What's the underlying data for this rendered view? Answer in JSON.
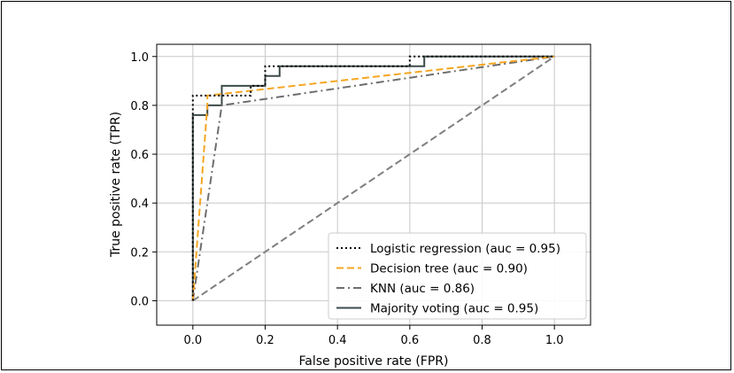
{
  "chart_data": {
    "type": "line",
    "title": "",
    "xlabel": "False positive rate (FPR)",
    "ylabel": "True positive rate (TPR)",
    "xlim": [
      -0.1,
      1.1
    ],
    "ylim": [
      -0.1,
      1.05
    ],
    "xticks": [
      0.0,
      0.2,
      0.4,
      0.6,
      0.8,
      1.0
    ],
    "xtick_labels": [
      "0.0",
      "0.2",
      "0.4",
      "0.6",
      "0.8",
      "1.0"
    ],
    "yticks": [
      0.0,
      0.2,
      0.4,
      0.6,
      0.8,
      1.0
    ],
    "ytick_labels": [
      "0.0",
      "0.2",
      "0.4",
      "0.6",
      "0.8",
      "1.0"
    ],
    "grid": true,
    "legend_position": "lower-right",
    "series": [
      {
        "name": "Logistic regression (auc = 0.95)",
        "style": "dotted",
        "color": "#000000",
        "x": [
          0,
          0,
          0,
          0.08,
          0.08,
          0.16,
          0.16,
          0.2,
          0.2,
          0.24,
          0.24,
          0.6,
          0.6,
          1.0
        ],
        "y": [
          0,
          0.8,
          0.84,
          0.84,
          0.84,
          0.84,
          0.88,
          0.88,
          0.96,
          0.96,
          0.96,
          0.96,
          1.0,
          1.0
        ]
      },
      {
        "name": "Decision tree (auc = 0.90)",
        "style": "dashed",
        "color": "#f5a623",
        "x": [
          0,
          0.04,
          0.04,
          1.0
        ],
        "y": [
          0,
          0.8,
          0.84,
          1.0
        ]
      },
      {
        "name": "KNN (auc = 0.86)",
        "style": "dashdot",
        "color": "#6e6e6e",
        "x": [
          0,
          0.08,
          1.0
        ],
        "y": [
          0,
          0.8,
          1.0
        ]
      },
      {
        "name": "Majority voting (auc = 0.95)",
        "style": "solid",
        "color": "#3d4a4a",
        "x": [
          0,
          0,
          0.04,
          0.04,
          0.08,
          0.08,
          0.2,
          0.2,
          0.24,
          0.24,
          0.64,
          0.64,
          1.0
        ],
        "y": [
          0,
          0.76,
          0.76,
          0.8,
          0.8,
          0.88,
          0.88,
          0.92,
          0.92,
          0.96,
          0.96,
          1.0,
          1.0
        ]
      },
      {
        "name": "",
        "style": "dashed",
        "color": "#7f7f7f",
        "x": [
          0,
          1
        ],
        "y": [
          0,
          1
        ]
      }
    ]
  }
}
